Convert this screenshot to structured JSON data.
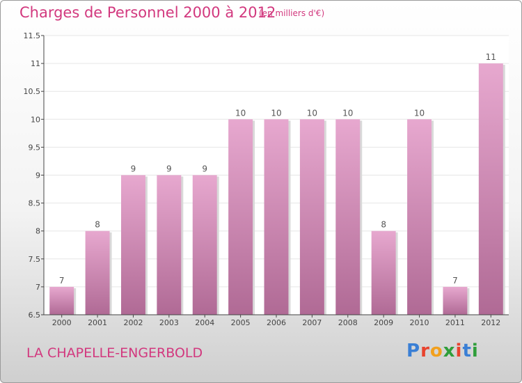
{
  "header": {
    "title": "Charges de Personnel 2000 à 2012",
    "unit_note": "(en milliers d'€)"
  },
  "footer": {
    "commune": "LA CHAPELLE-ENGERBOLD",
    "logo_text": "Proxiti",
    "logo_colors": [
      "#3a7fd5",
      "#e8432e",
      "#f2a01d",
      "#2f9e3a",
      "#e8432e",
      "#3a7fd5",
      "#2f9e3a"
    ]
  },
  "colors": {
    "bar_top": "#e7a8cf",
    "bar_bottom": "#b06a95",
    "accent": "#d2387e",
    "grid": "#e6e6e6",
    "axis": "#444444"
  },
  "chart_data": {
    "type": "bar",
    "title": "Charges de Personnel 2000 à 2012",
    "categories": [
      "2000",
      "2001",
      "2002",
      "2003",
      "2004",
      "2005",
      "2006",
      "2007",
      "2008",
      "2009",
      "2010",
      "2011",
      "2012"
    ],
    "values": [
      7,
      8,
      9,
      9,
      9,
      10,
      10,
      10,
      10,
      8,
      10,
      7,
      11
    ],
    "value_labels": [
      "7",
      "8",
      "9",
      "9",
      "9",
      "10",
      "10",
      "10",
      "10",
      "8",
      "10",
      "7",
      "11"
    ],
    "ylim": [
      6.5,
      11.5
    ],
    "yticks": [
      6.5,
      7,
      7.5,
      8,
      8.5,
      9,
      9.5,
      10,
      10.5,
      11,
      11.5
    ],
    "ytick_labels": [
      "6.5",
      "7",
      "7.5",
      "8",
      "8.5",
      "9",
      "9.5",
      "10",
      "10.5",
      "11",
      "11.5"
    ],
    "grid": true,
    "legend": false,
    "xlabel": "",
    "ylabel": ""
  }
}
